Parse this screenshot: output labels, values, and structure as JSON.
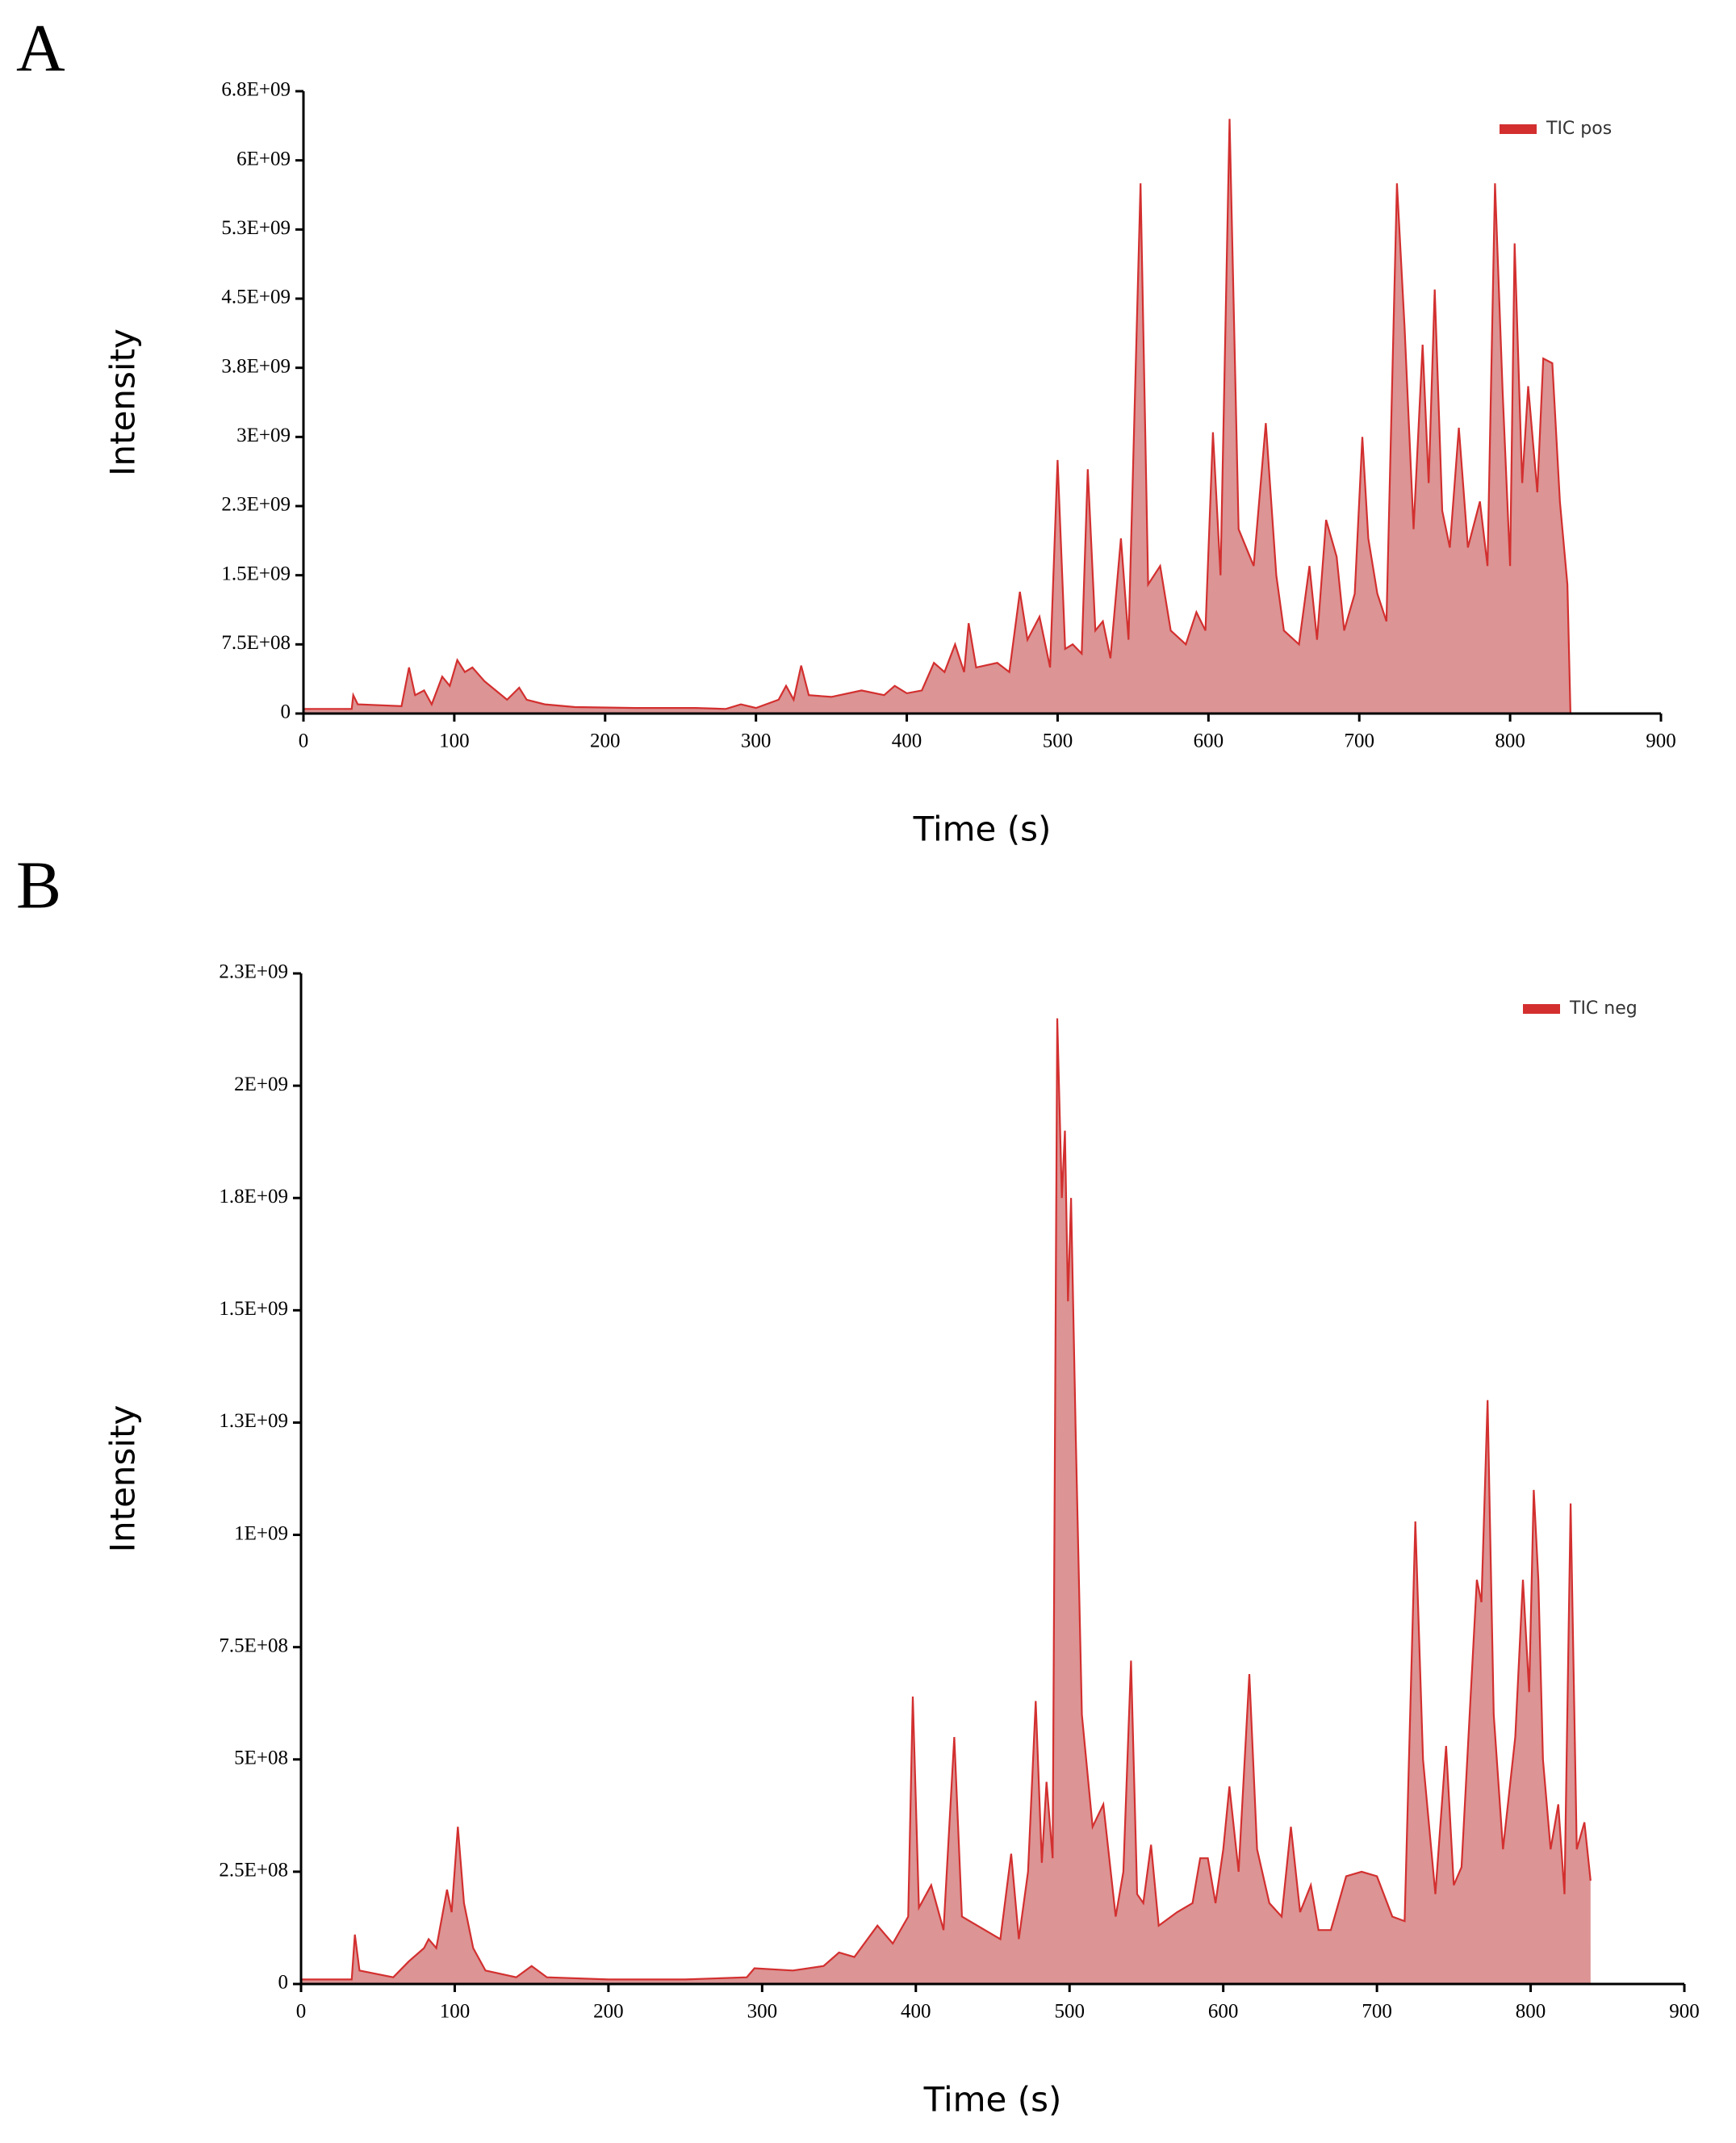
{
  "chart_data": [
    {
      "type": "area",
      "panel": "A",
      "xlabel": "Time (s)",
      "ylabel": "Intensity",
      "legend": "upper right",
      "xlim": [
        0,
        900
      ],
      "xticks": [
        0,
        100,
        200,
        300,
        400,
        500,
        600,
        700,
        800,
        900
      ],
      "ylim": [
        0,
        6750000000
      ],
      "yticks": [
        0,
        {
          "value": 750000000,
          "label": "7.5E+08"
        },
        {
          "value": 1500000000,
          "label": "1.5E+09"
        },
        {
          "value": 2250000000,
          "label": "2.3E+09"
        },
        {
          "value": 3000000000,
          "label": "3E+09"
        },
        {
          "value": 3750000000,
          "label": "3.8E+09"
        },
        {
          "value": 4500000000,
          "label": "4.5E+09"
        },
        {
          "value": 5250000000,
          "label": "5.3E+09"
        },
        {
          "value": 6000000000,
          "label": "6E+09"
        },
        {
          "value": 6750000000,
          "label": "6.8E+09"
        }
      ],
      "x": [
        0,
        32,
        33,
        36,
        65,
        70,
        74,
        80,
        85,
        92,
        97,
        102,
        107,
        112,
        120,
        135,
        143,
        148,
        160,
        180,
        220,
        260,
        280,
        290,
        300,
        315,
        320,
        325,
        330,
        335,
        350,
        370,
        385,
        392,
        400,
        410,
        418,
        425,
        432,
        438,
        441,
        446,
        460,
        468,
        475,
        480,
        488,
        495,
        500,
        505,
        510,
        516,
        520,
        525,
        530,
        535,
        542,
        547,
        555,
        560,
        568,
        575,
        585,
        592,
        598,
        603,
        608,
        614,
        620,
        630,
        638,
        645,
        650,
        660,
        667,
        672,
        678,
        685,
        690,
        697,
        702,
        706,
        712,
        718,
        725,
        730,
        736,
        742,
        746,
        750,
        755,
        760,
        766,
        772,
        780,
        785,
        790,
        795,
        800,
        803,
        808,
        812,
        818,
        822,
        828,
        833,
        838,
        840
      ],
      "series": [
        {
          "name": "TIC pos",
          "color": "#d32f2f",
          "fill": "#dc9494",
          "values": [
            50000000.0,
            50000000.0,
            200000000.0,
            100000000.0,
            80000000.0,
            500000000.0,
            200000000.0,
            250000000.0,
            100000000.0,
            400000000.0,
            300000000.0,
            580000000.0,
            450000000.0,
            500000000.0,
            350000000.0,
            150000000.0,
            280000000.0,
            150000000.0,
            100000000.0,
            70000000.0,
            60000000.0,
            60000000.0,
            50000000.0,
            100000000.0,
            60000000.0,
            150000000.0,
            300000000.0,
            150000000.0,
            520000000.0,
            200000000.0,
            180000000.0,
            250000000.0,
            200000000.0,
            300000000.0,
            220000000.0,
            250000000.0,
            550000000.0,
            450000000.0,
            750000000.0,
            450000000.0,
            980000000.0,
            500000000.0,
            550000000.0,
            450000000.0,
            1320000000.0,
            800000000.0,
            1050000000.0,
            500000000.0,
            2750000000.0,
            700000000.0,
            750000000.0,
            650000000.0,
            2650000000.0,
            900000000.0,
            1000000000.0,
            600000000.0,
            1900000000.0,
            800000000.0,
            5750000000.0,
            1400000000.0,
            1600000000.0,
            900000000.0,
            750000000.0,
            1100000000.0,
            900000000.0,
            3050000000.0,
            1500000000.0,
            6450000000.0,
            2000000000.0,
            1600000000.0,
            3150000000.0,
            1500000000.0,
            900000000.0,
            750000000.0,
            1600000000.0,
            800000000.0,
            2100000000.0,
            1700000000.0,
            900000000.0,
            1300000000.0,
            3000000000.0,
            1900000000.0,
            1300000000.0,
            1000000000.0,
            5750000000.0,
            4200000000.0,
            2000000000.0,
            4000000000.0,
            2500000000.0,
            4600000000.0,
            2200000000.0,
            1800000000.0,
            3100000000.0,
            1800000000.0,
            2300000000.0,
            1600000000.0,
            5750000000.0,
            3500000000.0,
            1600000000.0,
            5100000000.0,
            2500000000.0,
            3550000000.0,
            2400000000.0,
            3850000000.0,
            3800000000.0,
            2300000000.0,
            1400000000.0,
            0
          ]
        }
      ]
    },
    {
      "type": "area",
      "panel": "B",
      "xlabel": "Time (s)",
      "ylabel": "Intensity",
      "legend": "upper right",
      "xlim": [
        0,
        900
      ],
      "xticks": [
        0,
        100,
        200,
        300,
        400,
        500,
        600,
        700,
        800,
        900
      ],
      "ylim": [
        0,
        2250000000
      ],
      "yticks": [
        0,
        {
          "value": 250000000,
          "label": "2.5E+08"
        },
        {
          "value": 500000000,
          "label": "5E+08"
        },
        {
          "value": 750000000,
          "label": "7.5E+08"
        },
        {
          "value": 1000000000,
          "label": "1E+09"
        },
        {
          "value": 1250000000,
          "label": "1.3E+09"
        },
        {
          "value": 1500000000,
          "label": "1.5E+09"
        },
        {
          "value": 1750000000,
          "label": "1.8E+09"
        },
        {
          "value": 2000000000,
          "label": "2E+09"
        },
        {
          "value": 2250000000,
          "label": "2.3E+09"
        }
      ],
      "x": [
        0,
        33,
        35,
        38,
        60,
        70,
        80,
        83,
        88,
        95,
        98,
        102,
        106,
        112,
        120,
        140,
        150,
        160,
        200,
        250,
        290,
        295,
        320,
        340,
        350,
        360,
        375,
        385,
        395,
        398,
        402,
        410,
        418,
        425,
        430,
        440,
        455,
        462,
        467,
        473,
        478,
        482,
        485,
        489,
        492,
        495,
        497,
        499,
        501,
        504,
        508,
        515,
        522,
        530,
        535,
        540,
        544,
        548,
        553,
        558,
        570,
        580,
        585,
        590,
        595,
        600,
        604,
        610,
        617,
        622,
        630,
        638,
        644,
        650,
        657,
        662,
        670,
        680,
        690,
        700,
        710,
        718,
        725,
        730,
        738,
        745,
        750,
        755,
        765,
        768,
        772,
        776,
        782,
        790,
        795,
        799,
        802,
        805,
        808,
        813,
        818,
        822,
        826,
        830,
        835,
        839
      ],
      "series": [
        {
          "name": "TIC neg",
          "color": "#d32f2f",
          "fill": "#dc9494",
          "values": [
            10000000.0,
            10000000.0,
            110000000.0,
            30000000.0,
            15000000.0,
            50000000.0,
            80000000.0,
            100000000.0,
            80000000.0,
            210000000.0,
            160000000.0,
            350000000.0,
            180000000.0,
            80000000.0,
            30000000.0,
            15000000.0,
            40000000.0,
            15000000.0,
            10000000.0,
            10000000.0,
            15000000.0,
            35000000.0,
            30000000.0,
            40000000.0,
            70000000.0,
            60000000.0,
            130000000.0,
            90000000.0,
            150000000.0,
            640000000.0,
            170000000.0,
            220000000.0,
            120000000.0,
            550000000.0,
            150000000.0,
            130000000.0,
            100000000.0,
            290000000.0,
            100000000.0,
            250000000.0,
            630000000.0,
            270000000.0,
            450000000.0,
            280000000.0,
            2150000000.0,
            1750000000.0,
            1900000000.0,
            1520000000.0,
            1750000000.0,
            1230000000.0,
            600000000.0,
            350000000.0,
            400000000.0,
            150000000.0,
            250000000.0,
            720000000.0,
            200000000.0,
            180000000.0,
            310000000.0,
            130000000.0,
            160000000.0,
            180000000.0,
            280000000.0,
            280000000.0,
            180000000.0,
            300000000.0,
            440000000.0,
            250000000.0,
            690000000.0,
            300000000.0,
            180000000.0,
            150000000.0,
            350000000.0,
            160000000.0,
            220000000.0,
            120000000.0,
            120000000.0,
            240000000.0,
            250000000.0,
            240000000.0,
            150000000.0,
            140000000.0,
            1030000000.0,
            500000000.0,
            200000000.0,
            530000000.0,
            220000000.0,
            260000000.0,
            900000000.0,
            850000000.0,
            1300000000.0,
            600000000.0,
            300000000.0,
            550000000.0,
            900000000.0,
            650000000.0,
            1100000000.0,
            900000000.0,
            500000000.0,
            300000000.0,
            400000000.0,
            200000000.0,
            1070000000.0,
            300000000.0,
            360000000.0,
            230000000.0
          ]
        }
      ]
    }
  ]
}
